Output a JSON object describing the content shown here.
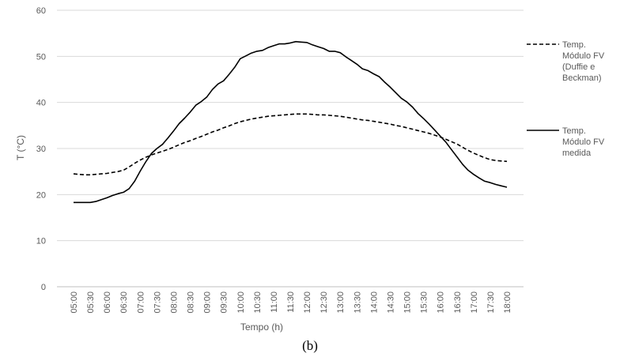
{
  "caption": "(b)",
  "chart_data": {
    "type": "line",
    "xlabel": "Tempo (h)",
    "ylabel": "T (°C)",
    "ylim": [
      0,
      60
    ],
    "yticks": [
      0,
      10,
      20,
      30,
      40,
      50,
      60
    ],
    "grid": true,
    "legend_position": "right",
    "categories": [
      "05:00",
      "05:30",
      "06:00",
      "06:30",
      "07:00",
      "07:30",
      "08:00",
      "08:30",
      "09:00",
      "09:30",
      "10:00",
      "10:30",
      "11:00",
      "11:30",
      "12:00",
      "12:30",
      "13:00",
      "13:30",
      "14:00",
      "14:30",
      "15:00",
      "15:30",
      "16:00",
      "16:30",
      "17:00",
      "17:30",
      "18:00"
    ],
    "x": [
      "05:00",
      "05:10",
      "05:20",
      "05:30",
      "05:40",
      "05:50",
      "06:00",
      "06:10",
      "06:20",
      "06:30",
      "06:40",
      "06:50",
      "07:00",
      "07:10",
      "07:20",
      "07:30",
      "07:40",
      "07:50",
      "08:00",
      "08:10",
      "08:20",
      "08:30",
      "08:40",
      "08:50",
      "09:00",
      "09:10",
      "09:20",
      "09:30",
      "09:40",
      "09:50",
      "10:00",
      "10:10",
      "10:20",
      "10:30",
      "10:40",
      "10:50",
      "11:00",
      "11:10",
      "11:20",
      "11:30",
      "11:40",
      "11:50",
      "12:00",
      "12:10",
      "12:20",
      "12:30",
      "12:40",
      "12:50",
      "13:00",
      "13:10",
      "13:20",
      "13:30",
      "13:40",
      "13:50",
      "14:00",
      "14:10",
      "14:20",
      "14:30",
      "14:40",
      "14:50",
      "15:00",
      "15:10",
      "15:20",
      "15:30",
      "15:40",
      "15:50",
      "16:00",
      "16:10",
      "16:20",
      "16:30",
      "16:40",
      "16:50",
      "17:00",
      "17:10",
      "17:20",
      "17:30",
      "17:40",
      "17:50",
      "18:00"
    ],
    "series": [
      {
        "name": "Temp. Módulo FV (Duffie e Beckman)",
        "style": "dashed",
        "color": "#000000",
        "values": [
          24.5,
          24.4,
          24.3,
          24.3,
          24.4,
          24.5,
          24.6,
          24.8,
          25.0,
          25.3,
          26.0,
          26.8,
          27.5,
          28.1,
          28.6,
          29.0,
          29.4,
          29.8,
          30.3,
          30.8,
          31.3,
          31.7,
          32.2,
          32.6,
          33.1,
          33.6,
          34.0,
          34.5,
          34.9,
          35.4,
          35.8,
          36.1,
          36.4,
          36.6,
          36.8,
          37.0,
          37.1,
          37.2,
          37.3,
          37.4,
          37.5,
          37.5,
          37.5,
          37.4,
          37.3,
          37.3,
          37.2,
          37.1,
          37.0,
          36.8,
          36.6,
          36.4,
          36.2,
          36.1,
          35.9,
          35.7,
          35.5,
          35.3,
          35.0,
          34.8,
          34.5,
          34.2,
          33.9,
          33.6,
          33.3,
          32.9,
          32.5,
          32.0,
          31.5,
          31.0,
          30.3,
          29.6,
          29.0,
          28.5,
          28.0,
          27.6,
          27.4,
          27.3,
          27.2
        ]
      },
      {
        "name": "Temp. Módulo FV medida",
        "style": "solid",
        "color": "#000000",
        "values": [
          18.3,
          18.3,
          18.3,
          18.3,
          18.5,
          18.9,
          19.3,
          19.8,
          20.2,
          20.5,
          21.3,
          22.9,
          25.1,
          27.1,
          28.9,
          30.0,
          30.9,
          32.3,
          33.8,
          35.4,
          36.6,
          37.9,
          39.4,
          40.2,
          41.2,
          42.8,
          44.0,
          44.7,
          46.1,
          47.6,
          49.5,
          50.1,
          50.7,
          51.1,
          51.3,
          51.9,
          52.3,
          52.7,
          52.7,
          52.9,
          53.2,
          53.1,
          53.0,
          52.5,
          52.1,
          51.7,
          51.1,
          51.1,
          50.8,
          49.9,
          49.1,
          48.3,
          47.3,
          46.9,
          46.2,
          45.6,
          44.4,
          43.3,
          42.1,
          40.9,
          40.1,
          39.0,
          37.6,
          36.5,
          35.3,
          34.0,
          32.7,
          31.4,
          29.8,
          28.2,
          26.6,
          25.3,
          24.4,
          23.6,
          22.9,
          22.6,
          22.2,
          21.9,
          21.6
        ]
      }
    ]
  }
}
